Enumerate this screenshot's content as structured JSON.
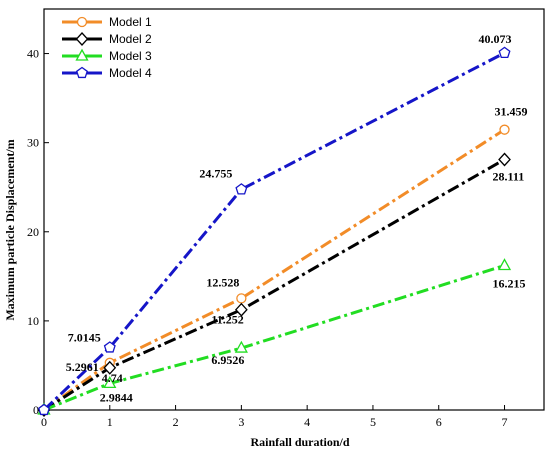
{
  "chart_data": {
    "type": "line",
    "xlabel": "Rainfall duration/d",
    "ylabel": "Maximum particle Displacement/m",
    "xlim": [
      0,
      7.6
    ],
    "ylim": [
      0,
      45
    ],
    "xticks": [
      0,
      1,
      2,
      3,
      4,
      5,
      6,
      7
    ],
    "yticks": [
      0,
      10,
      20,
      30,
      40
    ],
    "grid": false,
    "legend": "top-left",
    "series": [
      {
        "name": "Model 1",
        "color": "#F28C28",
        "marker": "circle",
        "x": [
          0,
          1,
          3,
          7
        ],
        "y": [
          0,
          5.2961,
          12.528,
          31.459
        ],
        "labels": [
          "",
          "5.2961",
          "12.528",
          "31.459"
        ]
      },
      {
        "name": "Model 2",
        "color": "#000000",
        "marker": "diamond",
        "x": [
          0,
          1,
          3,
          7
        ],
        "y": [
          0,
          4.74,
          11.252,
          28.111
        ],
        "labels": [
          "",
          "4.74",
          "11.252",
          "28.111"
        ]
      },
      {
        "name": "Model 3",
        "color": "#22DD22",
        "marker": "triangle",
        "x": [
          0,
          1,
          3,
          7
        ],
        "y": [
          0,
          2.9844,
          6.9526,
          16.215
        ],
        "labels": [
          "",
          "2.9844",
          "6.9526",
          "16.215"
        ]
      },
      {
        "name": "Model 4",
        "color": "#1515C8",
        "marker": "pentagon",
        "x": [
          0,
          1,
          3,
          7
        ],
        "y": [
          0,
          7.0145,
          24.755,
          40.073
        ],
        "labels": [
          "",
          "7.0145",
          "24.755",
          "40.073"
        ]
      }
    ]
  }
}
